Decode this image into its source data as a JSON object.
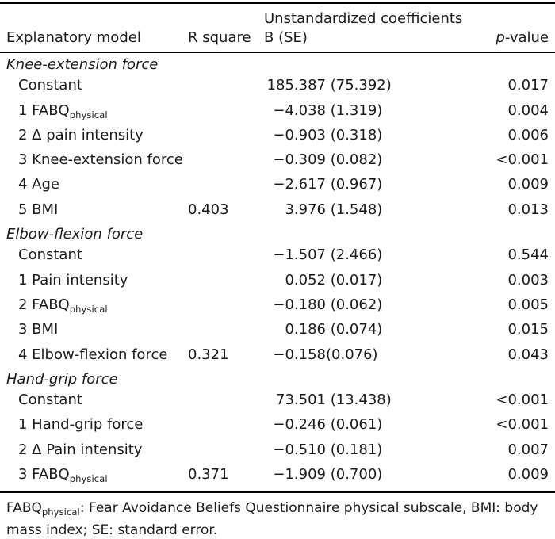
{
  "header": {
    "group_col3": "Unstandardized coefficients",
    "col1": "Explanatory model",
    "col2": "R square",
    "col3": "B (SE)",
    "p_italic": "p",
    "p_rest": "-value"
  },
  "sections": [
    {
      "title": "Knee-extension force",
      "rows": [
        {
          "label": "Constant",
          "b": "185.387",
          "se": " (75.392)",
          "p": "0.017"
        },
        {
          "label": "1 FABQ",
          "sub": "physical",
          "b": "−4.038",
          "se": " (1.319)",
          "p": "0.004"
        },
        {
          "label": "2 Δ pain intensity",
          "b": "−0.903",
          "se": " (0.318)",
          "p": "0.006"
        },
        {
          "label": "3 Knee-extension force",
          "b": "−0.309",
          "se": " (0.082)",
          "p": "<0.001"
        },
        {
          "label": "4 Age",
          "b": "−2.617",
          "se": " (0.967)",
          "p": "0.009"
        },
        {
          "label": "5 BMI",
          "rsq": "0.403",
          "b": "3.976",
          "se": " (1.548)",
          "p": "0.013"
        }
      ]
    },
    {
      "title": "Elbow-flexion force",
      "rows": [
        {
          "label": "Constant",
          "b": "−1.507",
          "se": " (2.466)",
          "p": "0.544"
        },
        {
          "label": "1 Pain intensity",
          "b": "0.052",
          "se": " (0.017)",
          "p": "0.003"
        },
        {
          "label": "2 FABQ",
          "sub": "physical",
          "b": "−0.180",
          "se": " (0.062)",
          "p": "0.005"
        },
        {
          "label": "3 BMI",
          "b": "0.186",
          "se": " (0.074)",
          "p": "0.015"
        },
        {
          "label": "4 Elbow-flexion force",
          "rsq": "0.321",
          "b": "−0.158",
          "se": "(0.076)",
          "p": "0.043"
        }
      ]
    },
    {
      "title": "Hand-grip force",
      "rows": [
        {
          "label": "Constant",
          "b": "73.501",
          "se": " (13.438)",
          "p": "<0.001"
        },
        {
          "label": "1 Hand-grip force",
          "b": "−0.246",
          "se": " (0.061)",
          "p": "<0.001"
        },
        {
          "label": "2 Δ Pain intensity",
          "b": "−0.510",
          "se": " (0.181)",
          "p": "0.007"
        },
        {
          "label": "3 FABQ",
          "sub": "physical",
          "rsq": "0.371",
          "b": "−1.909",
          "se": " (0.700)",
          "p": "0.009"
        }
      ]
    }
  ],
  "footnote": {
    "pre": "FABQ",
    "sub": "physical",
    "line1_rest": ": Fear Avoidance Beliefs Questionnaire physical subscale, BMI: body",
    "line2": "mass index; SE: standard error."
  }
}
